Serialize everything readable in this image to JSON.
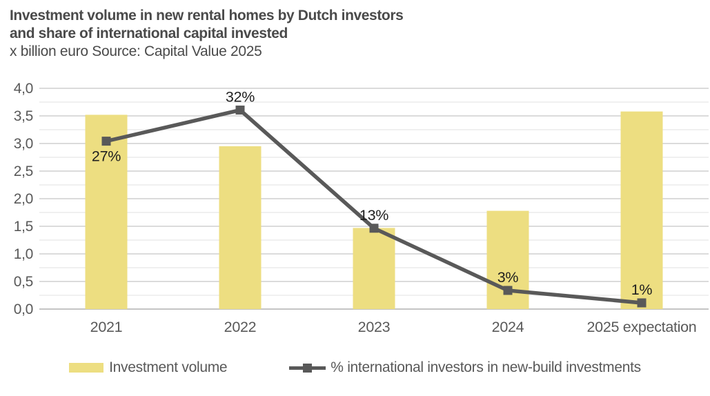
{
  "header": {
    "title_line1": "Investment volume in new rental homes by Dutch investors",
    "title_line2": "and share of international capital invested",
    "subtitle": "x billion euro Source: Capital Value 2025"
  },
  "legend": {
    "items": [
      {
        "label": "Investment volume",
        "marker": "bar-swatch",
        "color": "#EDDE81"
      },
      {
        "label": "% international investors in new-build investments",
        "marker": "line-with-square",
        "color": "#595959"
      }
    ]
  },
  "colors": {
    "bar_fill": "#EDDE81",
    "line_stroke": "#595959",
    "marker_fill": "#595959",
    "grid_major": "#DBDBDB",
    "grid_minor": "#F0F0F0",
    "axis_baseline": "#C4C4C4",
    "axis_text": "#595959",
    "data_label_text": "#1F1F1F",
    "title_text": "#4a4a4a"
  },
  "chart_data": {
    "type": "bar+line",
    "title": "Investment volume in new rental homes by Dutch investors and share of international capital invested",
    "subtitle": "x billion euro Source: Capital Value 2025",
    "categories": [
      "2021",
      "2022",
      "2023",
      "2024",
      "2025 expectation"
    ],
    "series": [
      {
        "name": "Investment volume",
        "type": "bar",
        "axis": "primary",
        "unit": "billion euro",
        "values": [
          3.52,
          2.95,
          1.47,
          1.78,
          3.58
        ]
      },
      {
        "name": "% international investors in new-build investments",
        "type": "line",
        "axis": "secondary-hidden",
        "unit": "%",
        "values": [
          27,
          32,
          13,
          3,
          1
        ],
        "data_labels": [
          "27%",
          "32%",
          "13%",
          "3%",
          "1%"
        ],
        "label_placement": [
          "below",
          "above",
          "above",
          "above",
          "above"
        ]
      }
    ],
    "ylim": [
      0,
      4
    ],
    "y_ticks": [
      {
        "value": 0.0,
        "label": "0,0"
      },
      {
        "value": 0.5,
        "label": "0,5"
      },
      {
        "value": 1.0,
        "label": "1,0"
      },
      {
        "value": 1.5,
        "label": "1,5"
      },
      {
        "value": 2.0,
        "label": "2,0"
      },
      {
        "value": 2.5,
        "label": "2,5"
      },
      {
        "value": 3.0,
        "label": "3,0"
      },
      {
        "value": 3.5,
        "label": "3,5"
      },
      {
        "value": 4.0,
        "label": "4,0"
      }
    ],
    "y2lim_estimated": [
      0,
      35.5
    ],
    "grid": "horizontal major+minor",
    "legend_position": "bottom"
  }
}
